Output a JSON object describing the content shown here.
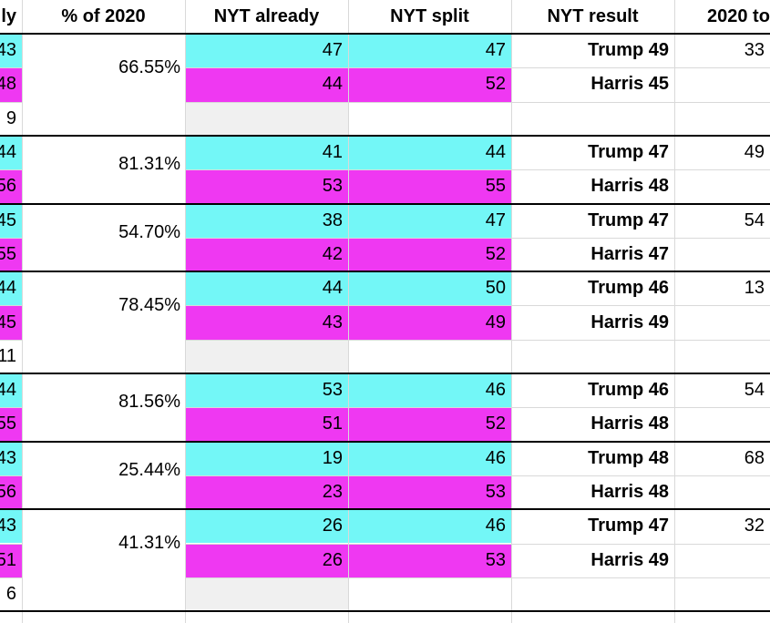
{
  "colors": {
    "trump": "#73f7f7",
    "harris": "#ef38f2",
    "other": "#f0f0f0",
    "gridline": "#d9d9d9",
    "border": "#000000"
  },
  "headers": {
    "col_a": "ly",
    "pct": "% of 2020",
    "already": "NYT already",
    "split": "NYT split",
    "result": "NYT result",
    "total": "2020 to"
  },
  "groups": [
    {
      "pct": "66.55%",
      "total": "33",
      "rows": [
        {
          "type": "trump",
          "col_a": "43",
          "already": "47",
          "split": "47",
          "result": "Trump 49"
        },
        {
          "type": "harris",
          "col_a": "48",
          "already": "44",
          "split": "52",
          "result": "Harris 45"
        },
        {
          "type": "other",
          "col_a": "9",
          "already": "",
          "split": "",
          "result": ""
        }
      ]
    },
    {
      "pct": "81.31%",
      "total": "49",
      "rows": [
        {
          "type": "trump",
          "col_a": "44",
          "already": "41",
          "split": "44",
          "result": "Trump 47"
        },
        {
          "type": "harris",
          "col_a": "56",
          "already": "53",
          "split": "55",
          "result": "Harris 48"
        }
      ]
    },
    {
      "pct": "54.70%",
      "total": "54",
      "rows": [
        {
          "type": "trump",
          "col_a": "45",
          "already": "38",
          "split": "47",
          "result": "Trump 47"
        },
        {
          "type": "harris",
          "col_a": "55",
          "already": "42",
          "split": "52",
          "result": "Harris 47"
        }
      ]
    },
    {
      "pct": "78.45%",
      "total": "13",
      "rows": [
        {
          "type": "trump",
          "col_a": "44",
          "already": "44",
          "split": "50",
          "result": "Trump 46"
        },
        {
          "type": "harris",
          "col_a": "45",
          "already": "43",
          "split": "49",
          "result": "Harris 49"
        },
        {
          "type": "other",
          "col_a": "11",
          "already": "",
          "split": "",
          "result": ""
        }
      ]
    },
    {
      "pct": "81.56%",
      "total": "54",
      "rows": [
        {
          "type": "trump",
          "col_a": "44",
          "already": "53",
          "split": "46",
          "result": "Trump 46"
        },
        {
          "type": "harris",
          "col_a": "55",
          "already": "51",
          "split": "52",
          "result": "Harris 48"
        }
      ]
    },
    {
      "pct": "25.44%",
      "total": "68",
      "rows": [
        {
          "type": "trump",
          "col_a": "43",
          "already": "19",
          "split": "46",
          "result": "Trump 48"
        },
        {
          "type": "harris",
          "col_a": "56",
          "already": "23",
          "split": "53",
          "result": "Harris 48"
        }
      ]
    },
    {
      "pct": "41.31%",
      "total": "32",
      "rows": [
        {
          "type": "trump",
          "col_a": "43",
          "already": "26",
          "split": "46",
          "result": "Trump 47"
        },
        {
          "type": "harris",
          "col_a": "51",
          "already": "26",
          "split": "53",
          "result": "Harris 49"
        },
        {
          "type": "other",
          "col_a": "6",
          "already": "",
          "split": "",
          "result": ""
        }
      ]
    }
  ]
}
